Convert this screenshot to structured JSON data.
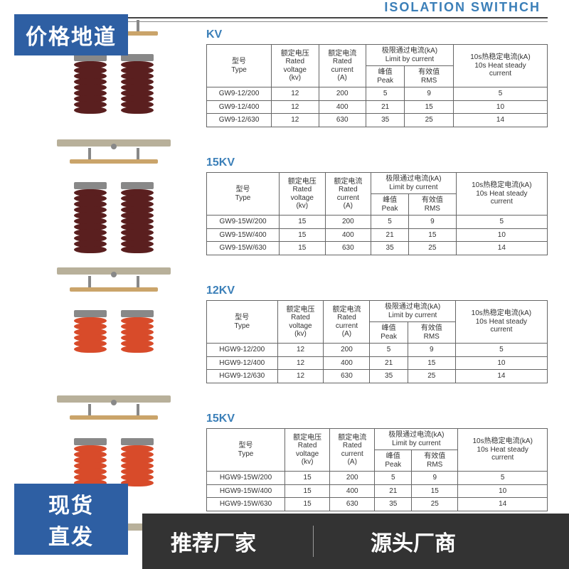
{
  "colors": {
    "accent": "#3b7fb8",
    "badge_bg": "#2e5fa3",
    "footer_bg": "#333333",
    "table_border": "#666666",
    "insulator_maroon": "#5a1f1f",
    "insulator_orange": "#d84b2a",
    "base": "#b8b09a",
    "bar": "#caa46a"
  },
  "title": "ISOLATION SWITHCH",
  "badges": {
    "top_left": "价格地道",
    "bottom_left_l1": "现货",
    "bottom_left_l2": "直发"
  },
  "footer": {
    "text1": "推荐厂家",
    "text2": "源头厂商"
  },
  "table_header": {
    "type_cn": "型号",
    "type_en": "Type",
    "voltage_cn": "额定电压",
    "voltage_en1": "Rated",
    "voltage_en2": "voltage",
    "voltage_unit": "(kv)",
    "current_cn": "额定电流",
    "current_en1": "Rated",
    "current_en2": "current",
    "current_unit": "(A)",
    "limit_cn": "极限通过电流(kA)",
    "limit_en": "Limit by current",
    "peak_cn": "峰值",
    "peak_en": "Peak",
    "rms_cn": "有效值",
    "rms_en": "RMS",
    "heat_cn": "10s热稳定电流(kA)",
    "heat_en1": "10s Heat steady",
    "heat_en2": "current"
  },
  "sections": [
    {
      "kv_label": "KV",
      "insulator_color": "maroon",
      "disc_count": 9,
      "rows": [
        {
          "type": "GW9-12/200",
          "voltage": "12",
          "current": "200",
          "peak": "5",
          "rms": "9",
          "heat": "5"
        },
        {
          "type": "GW9-12/400",
          "voltage": "12",
          "current": "400",
          "peak": "21",
          "rms": "15",
          "heat": "10"
        },
        {
          "type": "GW9-12/630",
          "voltage": "12",
          "current": "630",
          "peak": "35",
          "rms": "25",
          "heat": "14"
        }
      ]
    },
    {
      "kv_label": "15KV",
      "insulator_color": "maroon",
      "disc_count": 11,
      "rows": [
        {
          "type": "GW9-15W/200",
          "voltage": "15",
          "current": "200",
          "peak": "5",
          "rms": "9",
          "heat": "5"
        },
        {
          "type": "GW9-15W/400",
          "voltage": "15",
          "current": "400",
          "peak": "21",
          "rms": "15",
          "heat": "10"
        },
        {
          "type": "GW9-15W/630",
          "voltage": "15",
          "current": "630",
          "peak": "35",
          "rms": "25",
          "heat": "14"
        }
      ]
    },
    {
      "kv_label": "12KV",
      "insulator_color": "orange",
      "disc_count": 6,
      "rows": [
        {
          "type": "HGW9-12/200",
          "voltage": "12",
          "current": "200",
          "peak": "5",
          "rms": "9",
          "heat": "5"
        },
        {
          "type": "HGW9-12/400",
          "voltage": "12",
          "current": "400",
          "peak": "21",
          "rms": "15",
          "heat": "10"
        },
        {
          "type": "HGW9-12/630",
          "voltage": "12",
          "current": "630",
          "peak": "35",
          "rms": "25",
          "heat": "14"
        }
      ]
    },
    {
      "kv_label": "15KV",
      "insulator_color": "orange",
      "disc_count": 7,
      "rows": [
        {
          "type": "HGW9-15W/200",
          "voltage": "15",
          "current": "200",
          "peak": "5",
          "rms": "9",
          "heat": "5"
        },
        {
          "type": "HGW9-15W/400",
          "voltage": "15",
          "current": "400",
          "peak": "21",
          "rms": "15",
          "heat": "10"
        },
        {
          "type": "HGW9-15W/630",
          "voltage": "15",
          "current": "630",
          "peak": "35",
          "rms": "25",
          "heat": "14"
        }
      ]
    }
  ]
}
